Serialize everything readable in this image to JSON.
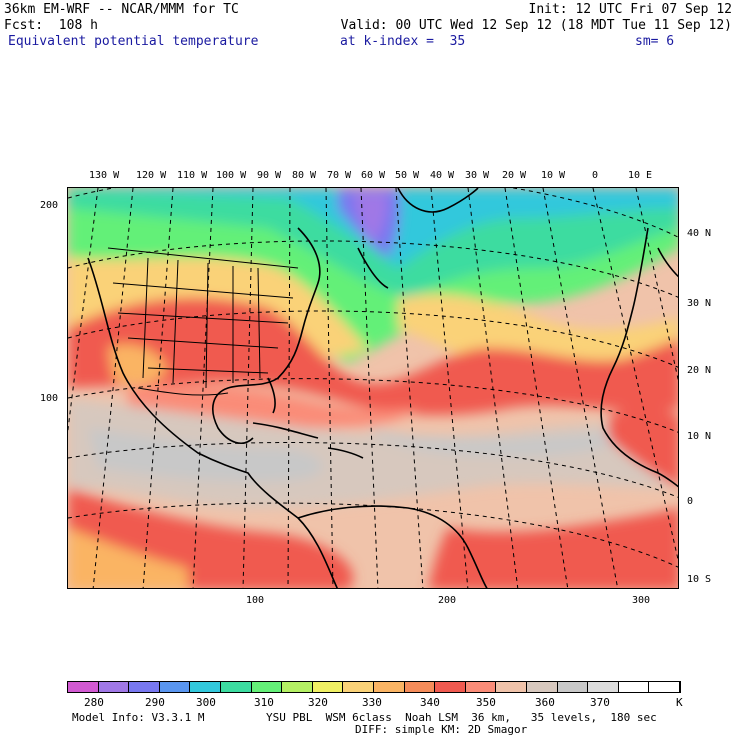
{
  "header": {
    "model": "36km EM-WRF -- NCAR/MMM for TC",
    "init": "Init: 12 UTC Fri 07 Sep 12",
    "forecast": "Fcst:  108 h",
    "valid": "Valid: 00 UTC Wed 12 Sep 12 (18 MDT Tue 11 Sep 12)",
    "field": "Equivalent potential temperature",
    "level": "at k-index =  35",
    "smoothing": "sm= 6"
  },
  "map": {
    "top_longitude_labels": [
      "130 W",
      "120 W",
      "110 W",
      "100 W",
      "90 W",
      "80 W",
      "70 W",
      "60 W",
      "50 W",
      "40 W",
      "30 W",
      "20 W",
      "10 W",
      "0",
      "10 E"
    ],
    "right_latitude_labels": [
      "40 N",
      "30 N",
      "20 N",
      "10 N",
      "0",
      "10 S"
    ],
    "left_grid_labels": [
      "200",
      "100"
    ],
    "bottom_grid_labels": [
      "100",
      "200",
      "300"
    ]
  },
  "colorbar": {
    "colors": [
      "#d25ad2",
      "#a078e6",
      "#7878f0",
      "#5a96f0",
      "#32c8dc",
      "#3cdca0",
      "#64f078",
      "#b4f064",
      "#f0f064",
      "#fad278",
      "#fab464",
      "#f58c5a",
      "#f05a50",
      "#fa8c78",
      "#f0c3aa",
      "#d7c8be",
      "#c8c8c8",
      "#dcdcdc",
      "#ffffff",
      "#ffffff"
    ],
    "labels": [
      "280",
      "290",
      "300",
      "310",
      "320",
      "330",
      "340",
      "350",
      "360",
      "370",
      "K"
    ]
  },
  "footer": {
    "info": "Model Info: V3.3.1 M",
    "physics": "YSU PBL  WSM 6class  Noah LSM  36 km,   35 levels,  180 sec",
    "diffusion": "DIFF: simple KM: 2D Smagor"
  }
}
